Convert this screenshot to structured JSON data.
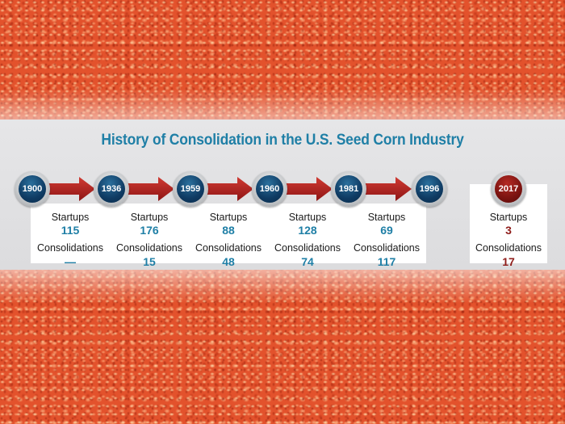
{
  "title": "History of Consolidation in the U.S. Seed Corn Industry",
  "labels": {
    "startups": "Startups",
    "consolidations": "Consolidations"
  },
  "chart_data": {
    "type": "table",
    "title": "History of Consolidation in the U.S. Seed Corn Industry",
    "years": [
      "1900",
      "1936",
      "1959",
      "1960",
      "1981",
      "1996",
      "2017"
    ],
    "periods": [
      {
        "from": "1900",
        "to": "1936",
        "startups": "115",
        "consolidations": "—"
      },
      {
        "from": "1936",
        "to": "1959",
        "startups": "176",
        "consolidations": "15"
      },
      {
        "from": "1959",
        "to": "1960",
        "startups": "88",
        "consolidations": "48"
      },
      {
        "from": "1960",
        "to": "1981",
        "startups": "128",
        "consolidations": "74"
      },
      {
        "from": "1981",
        "to": "1996",
        "startups": "69",
        "consolidations": "117"
      },
      {
        "from": "2017",
        "to": "",
        "startups": "3",
        "consolidations": "17"
      }
    ]
  },
  "colors": {
    "accent_blue": "#1f7fa6",
    "node_blue": "#0f3b63",
    "node_red": "#7a1310",
    "arrow_red": "#a81c1c",
    "value_red": "#8f1d1a"
  }
}
